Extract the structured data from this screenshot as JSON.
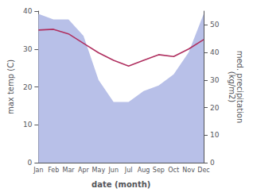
{
  "chart_data": {
    "type": "line",
    "xlabel": "date (month)",
    "ylabel": "max temp (C)",
    "y2label": "med. precipitation\n(kg/m2)",
    "categories": [
      "Jan",
      "Feb",
      "Mar",
      "Apr",
      "May",
      "Jun",
      "Jul",
      "Aug",
      "Sep",
      "Oct",
      "Nov",
      "Dec"
    ],
    "series": [
      {
        "type": "area",
        "axis": "y2",
        "color": "#b8c0e8",
        "values": [
          54,
          52,
          52,
          46,
          30,
          22,
          22,
          26,
          28,
          32,
          40,
          54
        ]
      },
      {
        "type": "line",
        "color": "#b03060",
        "values": [
          35.0,
          35.2,
          34.0,
          31.5,
          29.0,
          27.0,
          25.5,
          27.0,
          28.5,
          28.0,
          30.0,
          32.5
        ]
      }
    ],
    "ylim": [
      0,
      40
    ],
    "yticks": [
      0,
      10,
      20,
      30,
      40
    ],
    "y2lim": [
      0,
      55
    ],
    "y2ticks": [
      0,
      10,
      20,
      30,
      40,
      50
    ],
    "grid": false
  }
}
